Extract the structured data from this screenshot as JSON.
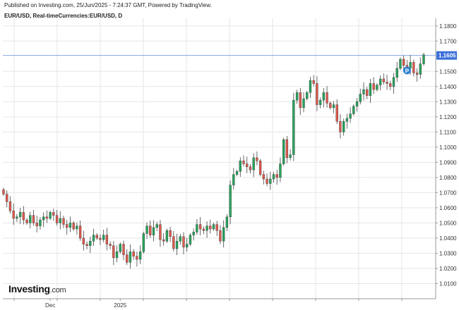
{
  "header": {
    "published": "Published on Investing.com, 25/Jun/2025 - 7:24:37 GMT, Powered by TradingView.",
    "instrument": "EUR/USD, Real-timeCurrencies:EUR/USD, D"
  },
  "logo": {
    "word": "Investing",
    "suffix": ".com"
  },
  "marker": {
    "label": "P",
    "color": "#2f80d1"
  },
  "colors": {
    "up": "#26a65b",
    "down": "#e0594d",
    "grid": "#e6e6e6",
    "axis": "#9a9a9a",
    "current": "#3a6fd8"
  },
  "chart_data": {
    "type": "candlestick",
    "title": "EUR/USD, Real-timeCurrencies:EUR/USD, D",
    "ylim": [
      1.0,
      1.185
    ],
    "y_ticks": [
      1.01,
      1.02,
      1.03,
      1.04,
      1.05,
      1.06,
      1.07,
      1.08,
      1.09,
      1.1,
      1.11,
      1.12,
      1.13,
      1.14,
      1.15,
      1.17,
      1.18
    ],
    "y_tick_labels": [
      "1.0100",
      "1.0200",
      "1.0300",
      "1.0400",
      "1.0500",
      "1.0600",
      "1.0700",
      "1.0800",
      "1.0900",
      "1.1000",
      "1.1100",
      "1.1200",
      "1.1300",
      "1.1400",
      "1.1500",
      "1.1700",
      "1.1800"
    ],
    "x_labels": [
      {
        "label": "Dec",
        "index": 14
      },
      {
        "label": "2025",
        "index": 35
      }
    ],
    "current_price": 1.1605,
    "current_price_label": "1.1605",
    "closes": [
      1.069,
      1.064,
      1.058,
      1.053,
      1.054,
      1.057,
      1.052,
      1.05,
      1.055,
      1.05,
      1.048,
      1.052,
      1.054,
      1.053,
      1.057,
      1.055,
      1.05,
      1.053,
      1.049,
      1.047,
      1.05,
      1.046,
      1.048,
      1.04,
      1.036,
      1.035,
      1.038,
      1.042,
      1.04,
      1.039,
      1.042,
      1.036,
      1.035,
      1.027,
      1.031,
      1.036,
      1.029,
      1.024,
      1.031,
      1.028,
      1.026,
      1.031,
      1.043,
      1.048,
      1.042,
      1.047,
      1.049,
      1.039,
      1.038,
      1.045,
      1.041,
      1.033,
      1.038,
      1.041,
      1.034,
      1.036,
      1.042,
      1.044,
      1.049,
      1.046,
      1.045,
      1.048,
      1.046,
      1.049,
      1.045,
      1.038,
      1.047,
      1.054,
      1.075,
      1.082,
      1.084,
      1.091,
      1.089,
      1.087,
      1.085,
      1.093,
      1.091,
      1.082,
      1.079,
      1.076,
      1.079,
      1.082,
      1.08,
      1.089,
      1.105,
      1.093,
      1.095,
      1.131,
      1.136,
      1.126,
      1.132,
      1.136,
      1.144,
      1.142,
      1.128,
      1.131,
      1.136,
      1.129,
      1.126,
      1.128,
      1.117,
      1.11,
      1.117,
      1.119,
      1.122,
      1.127,
      1.13,
      1.135,
      1.138,
      1.134,
      1.142,
      1.138,
      1.141,
      1.145,
      1.143,
      1.142,
      1.14,
      1.146,
      1.152,
      1.158,
      1.154,
      1.152,
      1.156,
      1.149,
      1.148,
      1.155,
      1.161
    ]
  }
}
